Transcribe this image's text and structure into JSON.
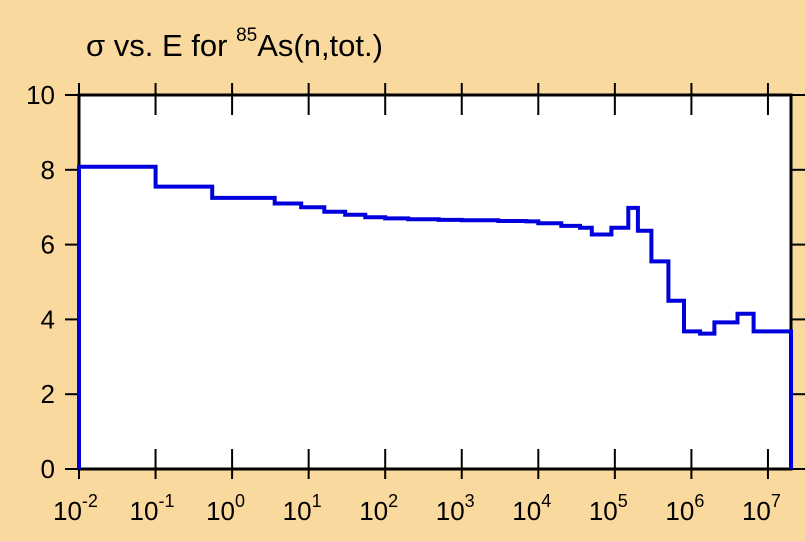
{
  "chart_data": {
    "type": "line",
    "title": {
      "prefix": "σ vs. E for ",
      "mass_number": "85",
      "suffix": "As(n,tot.)"
    },
    "xlabel": "",
    "ylabel": "",
    "x_scale": "log",
    "xlim": [
      0.01,
      20000000
    ],
    "ylim": [
      0,
      10
    ],
    "x_tick_labels": [
      {
        "base": "10",
        "exp": "-2"
      },
      {
        "base": "10",
        "exp": "-1"
      },
      {
        "base": "10",
        "exp": "0"
      },
      {
        "base": "10",
        "exp": "1"
      },
      {
        "base": "10",
        "exp": "2"
      },
      {
        "base": "10",
        "exp": "3"
      },
      {
        "base": "10",
        "exp": "4"
      },
      {
        "base": "10",
        "exp": "5"
      },
      {
        "base": "10",
        "exp": "6"
      },
      {
        "base": "10",
        "exp": "7"
      }
    ],
    "y_tick_labels": [
      "0",
      "2",
      "4",
      "6",
      "8",
      "10"
    ],
    "grid": false,
    "line_color": "#0000dd",
    "step_boundaries": [
      0.01,
      0.1,
      0.55,
      3.6,
      8,
      16,
      30,
      55,
      100,
      200,
      500,
      1000,
      3000,
      7000,
      10000,
      20000,
      35000,
      50000,
      90000,
      150000,
      200000,
      300000,
      500000,
      800000,
      1300000,
      2000000,
      4000000,
      6500000,
      10000000,
      20000000
    ],
    "step_values": [
      8.08,
      7.55,
      7.25,
      7.1,
      7.0,
      6.88,
      6.8,
      6.73,
      6.7,
      6.68,
      6.66,
      6.65,
      6.63,
      6.62,
      6.57,
      6.5,
      6.45,
      6.27,
      6.45,
      6.98,
      6.37,
      5.55,
      4.5,
      3.68,
      3.62,
      3.92,
      4.15,
      3.68,
      3.68
    ]
  }
}
